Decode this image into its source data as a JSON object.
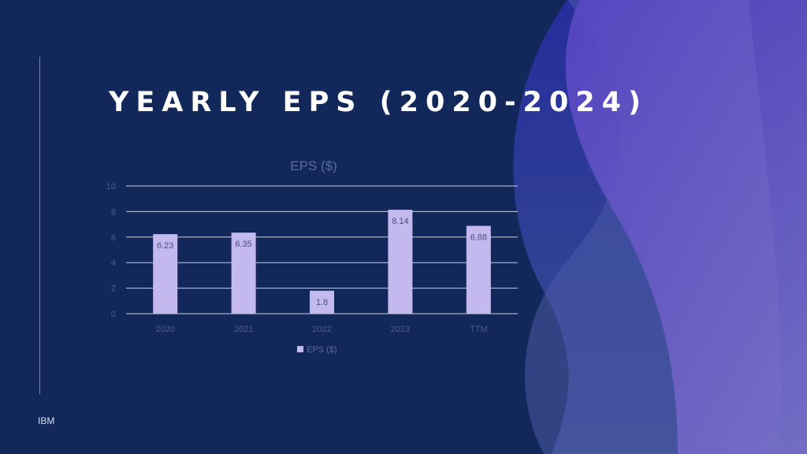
{
  "slide": {
    "title": "YEARLY EPS (2020-2024)",
    "footer": "IBM"
  },
  "colors": {
    "background": "#13285a",
    "bar": "#c3b9ef",
    "wave_dark": "#3f3fb8",
    "wave_light": "#7a6cd0"
  },
  "chart_data": {
    "type": "bar",
    "title": "EPS ($)",
    "categories": [
      "2020",
      "2021",
      "2022",
      "2023",
      "TTM"
    ],
    "series": [
      {
        "name": "EPS ($)",
        "values": [
          6.23,
          6.35,
          1.8,
          8.14,
          6.88
        ]
      }
    ],
    "data_labels": [
      "6.23",
      "6.35",
      "1.8",
      "8.14",
      "6.88"
    ],
    "ylim": [
      0,
      10
    ],
    "yticks": [
      0,
      2,
      4,
      6,
      8,
      10
    ],
    "grid": true,
    "legend": "bottom"
  }
}
